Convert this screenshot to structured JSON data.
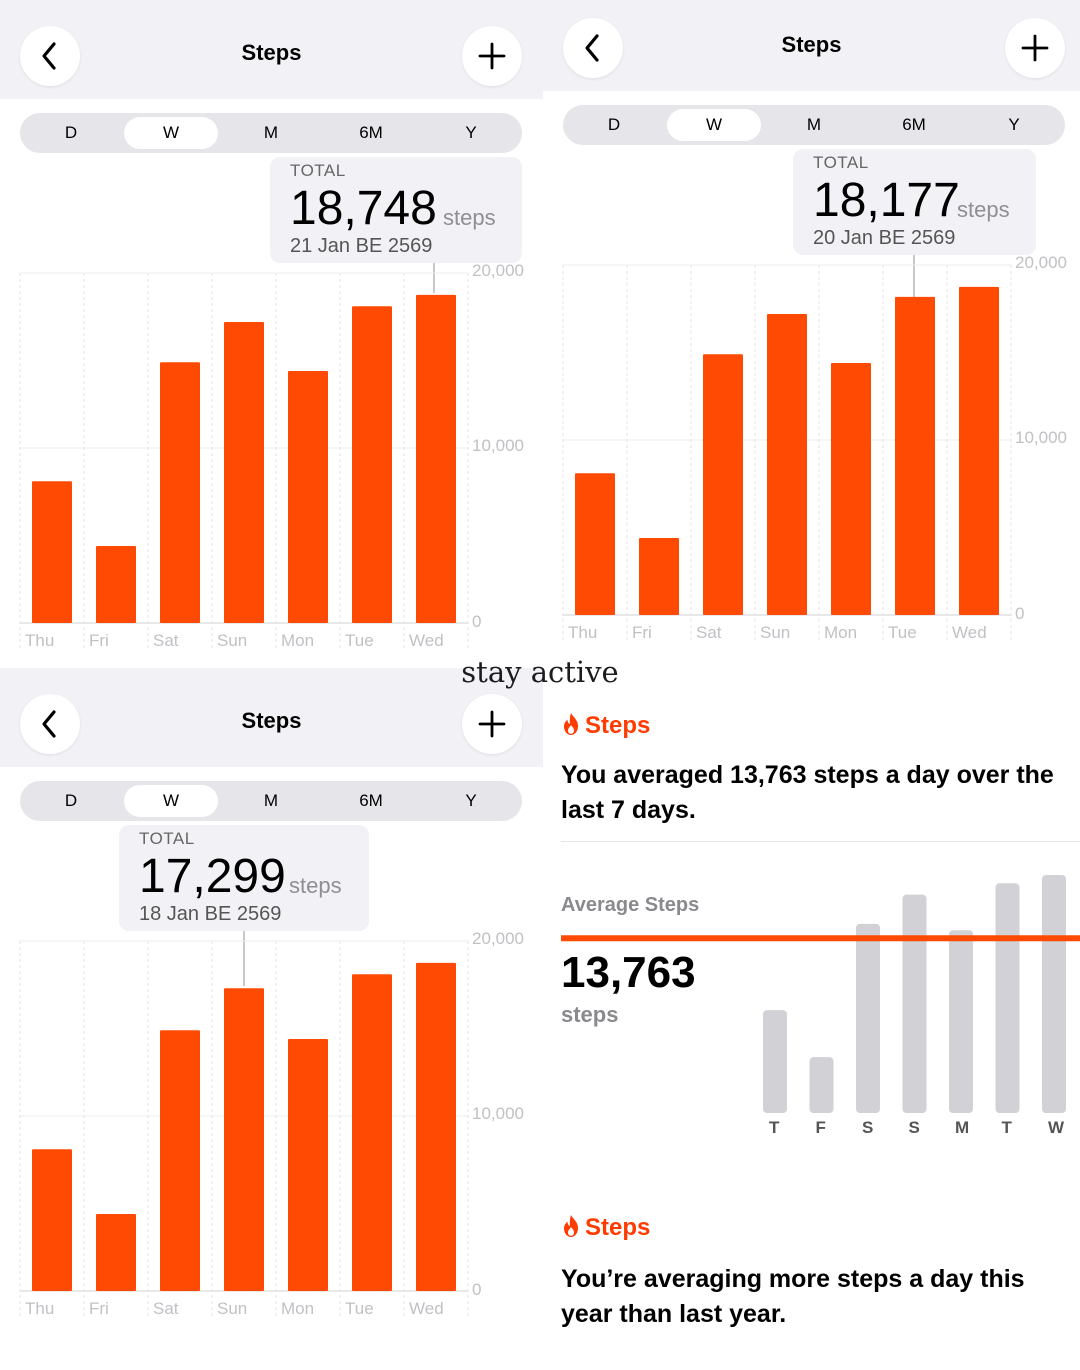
{
  "accent": "#ff4a03",
  "gray_bar": "#d1d1d6",
  "icons": {
    "back": "chevron-left-icon",
    "add": "plus-icon",
    "flame": "flame-icon"
  },
  "screens": [
    {
      "title": "Steps",
      "segments": [
        "D",
        "W",
        "M",
        "6M",
        "Y"
      ],
      "selected_segment": "W",
      "summary": {
        "label": "TOTAL",
        "value": "18,748",
        "unit": "steps",
        "date": "21 Jan BE 2569"
      },
      "highlight_index": 6,
      "chart_data": {
        "type": "bar",
        "categories": [
          "Thu",
          "Fri",
          "Sat",
          "Sun",
          "Mon",
          "Tue",
          "Wed"
        ],
        "values": [
          8100,
          4400,
          14900,
          17200,
          14400,
          18100,
          18748
        ],
        "y_ticks": [
          "20,000",
          "10,000",
          "0"
        ],
        "ylim": [
          0,
          20000
        ],
        "grid": true
      }
    },
    {
      "title": "Steps",
      "segments": [
        "D",
        "W",
        "M",
        "6M",
        "Y"
      ],
      "selected_segment": "W",
      "summary": {
        "label": "TOTAL",
        "value": "18,177",
        "unit": "steps",
        "date": "20 Jan BE 2569"
      },
      "highlight_index": 5,
      "chart_data": {
        "type": "bar",
        "categories": [
          "Thu",
          "Fri",
          "Sat",
          "Sun",
          "Mon",
          "Tue",
          "Wed"
        ],
        "values": [
          8100,
          4400,
          14900,
          17200,
          14400,
          18177,
          18750
        ],
        "y_ticks": [
          "20,000",
          "10,000",
          "0"
        ],
        "ylim": [
          0,
          20000
        ],
        "grid": true
      }
    },
    {
      "title": "Steps",
      "segments": [
        "D",
        "W",
        "M",
        "6M",
        "Y"
      ],
      "selected_segment": "W",
      "summary": {
        "label": "TOTAL",
        "value": "17,299",
        "unit": "steps",
        "date": "18 Jan BE 2569"
      },
      "highlight_index": 3,
      "chart_data": {
        "type": "bar",
        "categories": [
          "Thu",
          "Fri",
          "Sat",
          "Sun",
          "Mon",
          "Tue",
          "Wed"
        ],
        "values": [
          8100,
          4400,
          14900,
          17299,
          14400,
          18100,
          18750
        ],
        "y_ticks": [
          "20,000",
          "10,000",
          "0"
        ],
        "ylim": [
          0,
          20000
        ],
        "grid": true
      }
    }
  ],
  "caption": "stay active",
  "card1": {
    "heading": "Steps",
    "text": "You averaged 13,763 steps a day over the last 7 days.",
    "avg_label": "Average Steps",
    "avg_value": "13,763",
    "avg_unit": "steps",
    "chart_data": {
      "type": "bar",
      "categories": [
        "T",
        "F",
        "S",
        "S",
        "M",
        "T",
        "W"
      ],
      "values": [
        8100,
        4400,
        14900,
        17200,
        14400,
        18100,
        18750
      ],
      "average": 13763
    }
  },
  "card2": {
    "heading": "Steps",
    "text": "You’re averaging more steps a day this year than last year."
  }
}
